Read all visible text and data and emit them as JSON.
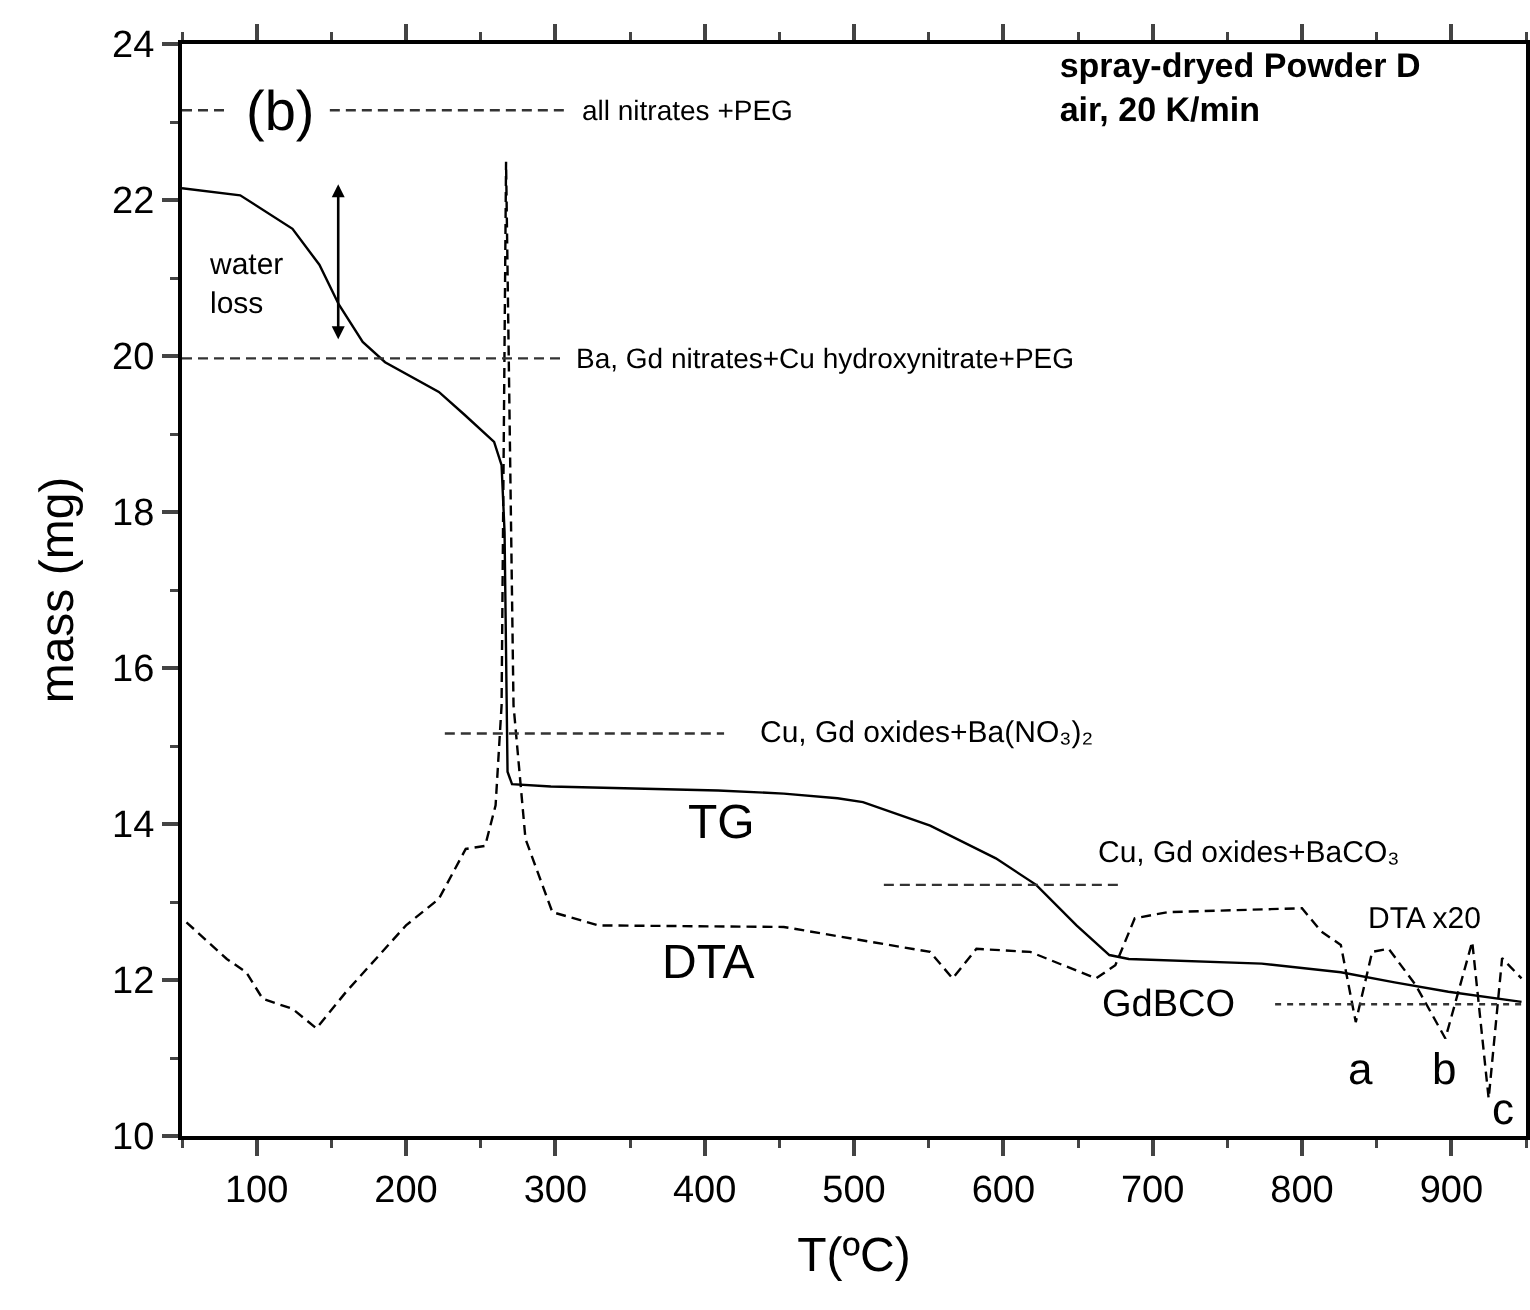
{
  "chart_data": {
    "type": "line",
    "title": "spray-dryed Powder D\nair, 20 K/min",
    "xlabel": "T(ºC)",
    "ylabel": "mass (mg)",
    "xlim": [
      50,
      950
    ],
    "xticks": [
      {
        "value": 50,
        "label": null
      },
      100,
      {
        "value": 150,
        "label": null
      },
      200,
      {
        "value": 250,
        "label": null
      },
      300,
      {
        "value": 350,
        "label": null
      },
      400,
      {
        "value": 450,
        "label": null
      },
      500,
      {
        "value": 550,
        "label": null
      },
      600,
      {
        "value": 650,
        "label": null
      },
      700,
      {
        "value": 750,
        "label": null
      },
      800,
      {
        "value": 850,
        "label": null
      },
      900,
      {
        "value": 950,
        "label": null
      }
    ],
    "ylim": [
      10,
      24
    ],
    "yticks": [
      10,
      {
        "value": 11,
        "label": null
      },
      12,
      {
        "value": 13,
        "label": null
      },
      14,
      {
        "value": 15,
        "label": null
      },
      16,
      {
        "value": 17,
        "label": null
      },
      18,
      {
        "value": 19,
        "label": null
      },
      20,
      {
        "value": 21,
        "label": null
      },
      22,
      {
        "value": 23,
        "label": null
      },
      24
    ],
    "grid": false,
    "marker": "none",
    "series": [
      {
        "color": "#000000",
        "line_style": "solid",
        "x": [
          50,
          89,
          124,
          142,
          155,
          171,
          186,
          222,
          239,
          259,
          264,
          266,
          268,
          271,
          297,
          409,
          453,
          489,
          506,
          551,
          595,
          622,
          649,
          671,
          684,
          773,
          826,
          862,
          898,
          947
        ],
        "values": [
          22.15,
          22.06,
          21.63,
          21.17,
          20.66,
          20.18,
          19.92,
          19.54,
          19.25,
          18.9,
          18.6,
          17.74,
          14.67,
          14.51,
          14.48,
          14.43,
          14.39,
          14.33,
          14.28,
          13.98,
          13.56,
          13.22,
          12.7,
          12.32,
          12.27,
          12.21,
          12.1,
          11.97,
          11.85,
          11.72
        ]
      },
      {
        "color": "#000000",
        "line_style": "dashed",
        "x": [
          53,
          80,
          93,
          104,
          124,
          140,
          160,
          200,
          222,
          240,
          253,
          260,
          264,
          267,
          272,
          280,
          298,
          329,
          453,
          551,
          566,
          582,
          618,
          662,
          675,
          688,
          710,
          800,
          813,
          826,
          836,
          847,
          858,
          876,
          896,
          914,
          925,
          934,
          947
        ],
        "values": [
          12.74,
          12.27,
          12.1,
          11.76,
          11.63,
          11.38,
          11.85,
          12.7,
          13.04,
          13.68,
          13.72,
          14.24,
          15.52,
          22.49,
          15.52,
          13.81,
          12.87,
          12.7,
          12.68,
          12.36,
          12.02,
          12.4,
          12.36,
          12.02,
          12.19,
          12.79,
          12.87,
          12.92,
          12.62,
          12.45,
          11.46,
          12.36,
          12.4,
          11.94,
          11.25,
          12.49,
          10.48,
          12.28,
          12.02
        ]
      },
      {
        "color": "#333333",
        "line_style": "dashed",
        "x": [
          50,
          82,
          null,
          149,
          306
        ],
        "values": [
          23.15,
          23.15,
          null,
          23.15,
          23.15
        ]
      },
      {
        "color": "#333333",
        "line_style": "dashed",
        "x": [
          50,
          306
        ],
        "values": [
          19.97,
          19.97
        ]
      },
      {
        "color": "#333333",
        "line_style": "dashed",
        "x": [
          226,
          413
        ],
        "values": [
          15.16,
          15.16
        ]
      },
      {
        "color": "#333333",
        "line_style": "dashed",
        "x": [
          520,
          678
        ],
        "values": [
          13.22,
          13.22
        ]
      },
      {
        "color": "#333333",
        "line_style": "dotted",
        "x": [
          782,
          947
        ],
        "values": [
          11.69,
          11.69
        ]
      }
    ],
    "annotations": [
      "(b)",
      "all nitrates +PEG",
      "water loss",
      "Ba, Gd nitrates+Cu hydroxynitrate+PEG",
      "Cu, Gd oxides+Ba(NO₃)₂",
      "TG",
      "DTA",
      "Cu, Gd oxides+BaCO₃",
      "DTA x20",
      "GdBCO",
      "a",
      "b",
      "c"
    ]
  }
}
